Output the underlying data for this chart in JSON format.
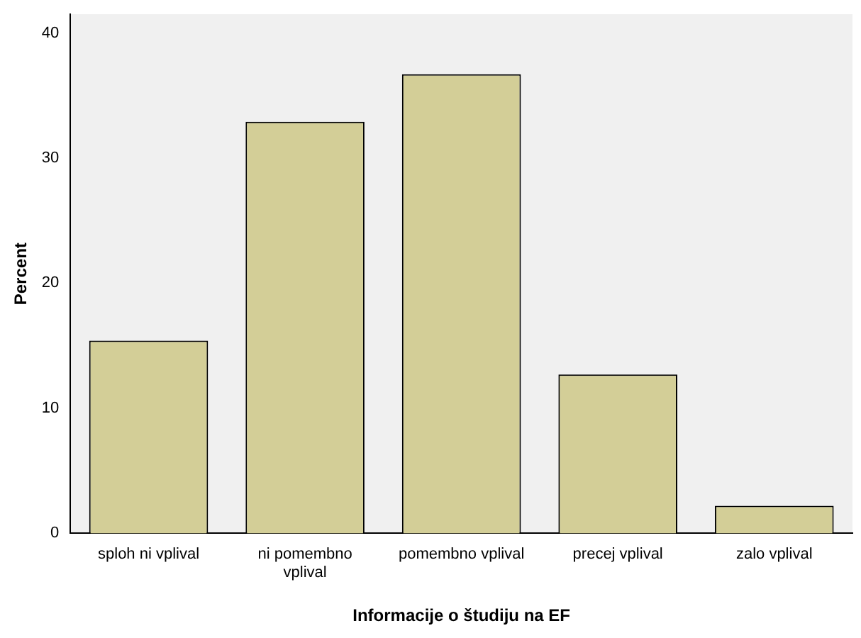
{
  "chart_data": {
    "type": "bar",
    "xlabel": "Informacije o študiju na EF",
    "ylabel": "Percent",
    "categories": [
      "sploh ni vplival",
      "ni pomembno vplival",
      "pomembno vplival",
      "precej vplival",
      "zalo vplival"
    ],
    "values": [
      15.4,
      32.9,
      36.7,
      12.7,
      2.2
    ],
    "color": "#d3ce97",
    "ylim": [
      0,
      41.5
    ],
    "yticks": [
      0,
      10,
      20,
      30,
      40
    ],
    "grid": false,
    "legend": false
  }
}
